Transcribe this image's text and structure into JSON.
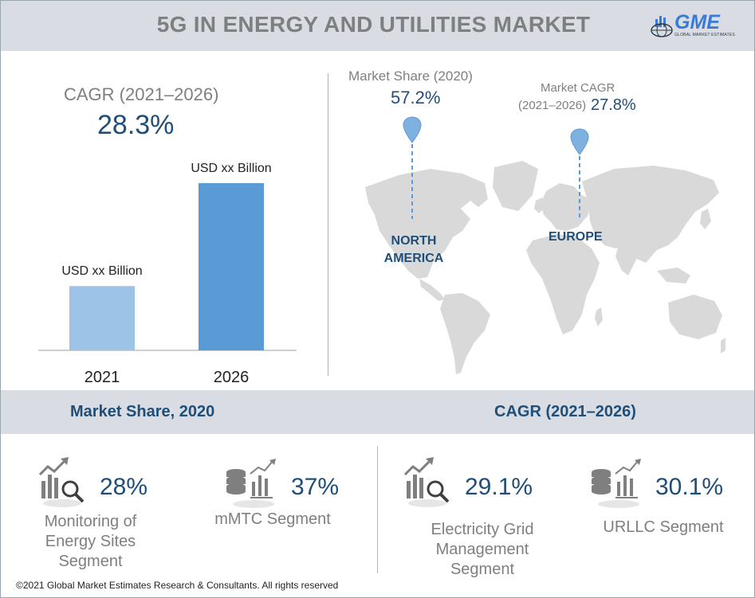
{
  "header": {
    "title": "5G IN ENERGY AND UTILITIES MARKET",
    "logo_text": "GME",
    "logo_subtext": "GLOBAL MARKET ESTIMATES"
  },
  "cagr_panel": {
    "label": "CAGR (2021–2026)",
    "value": "28.3%"
  },
  "chart_data": {
    "type": "bar",
    "categories": [
      "2021",
      "2026"
    ],
    "values": [
      1,
      2.6
    ],
    "data_labels": [
      "USD xx Billion",
      "USD xx Billion"
    ],
    "colors": [
      "#9dc3e6",
      "#5b9bd5"
    ],
    "title": "",
    "xlabel": "",
    "ylabel": "",
    "ylim": [
      0,
      2.6
    ]
  },
  "map": {
    "north_america": {
      "stat_label": "Market Share (2020)",
      "stat_value": "57.2%",
      "region_line1": "NORTH",
      "region_line2": "AMERICA"
    },
    "europe": {
      "stat_label_line1": "Market CAGR",
      "stat_label_line2": "(2021–2026)",
      "stat_value": "27.8%",
      "region": "EUROPE"
    }
  },
  "band": {
    "left": "Market Share, 2020",
    "right": "CAGR (2021–2026)"
  },
  "segments": [
    {
      "value": "28%",
      "label_lines": [
        "Monitoring of",
        "Energy Sites",
        "Segment"
      ],
      "icon": "bar-chart-magnifier-icon"
    },
    {
      "value": "37%",
      "label_lines": [
        "mMTC Segment"
      ],
      "icon": "database-chart-icon"
    },
    {
      "value": "29.1%",
      "label_lines": [
        "Electricity Grid",
        "Management",
        "Segment"
      ],
      "icon": "bar-chart-magnifier-icon"
    },
    {
      "value": "30.1%",
      "label_lines": [
        "URLLC Segment"
      ],
      "icon": "database-chart-icon"
    }
  ],
  "colors": {
    "accent": "#1f4e79",
    "muted": "#7f7f7f",
    "band": "#d9dde3",
    "pin": "#7fb1e0",
    "land": "#d9d9d9"
  },
  "footer": "©2021 Global Market Estimates Research & Consultants. All rights reserved"
}
